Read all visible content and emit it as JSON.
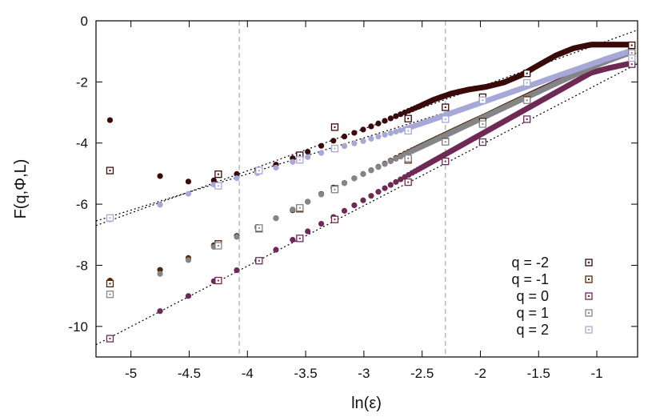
{
  "chart_data": {
    "type": "scatter",
    "xlabel": "ln(ε)",
    "ylabel": "F(q,Φ,L)",
    "xlim": [
      -5.3,
      -0.65
    ],
    "ylim": [
      -11,
      0
    ],
    "xticks": [
      -5,
      -4.5,
      -4,
      -3.5,
      -3,
      -2.5,
      -2,
      -1.5,
      -1
    ],
    "xtick_labels": [
      "-5",
      "-4.5",
      "-4",
      "-3.5",
      "-3",
      "-2.5",
      "-2",
      "-1.5",
      "-1"
    ],
    "yticks": [
      0,
      -2,
      -4,
      -6,
      -8,
      -10
    ],
    "ytick_labels": [
      "0",
      "-2",
      "-4",
      "-6",
      "-8",
      "-10"
    ],
    "grid": false,
    "legend_position": "bottom-right",
    "vertical_reference_lines": [
      -4.07,
      -2.3
    ],
    "fit_lines": [
      {
        "from": [
          -5.3,
          -6.7
        ],
        "to": [
          -0.65,
          -0.3
        ]
      },
      {
        "from": [
          -5.3,
          -6.55
        ],
        "to": [
          -0.65,
          -1.05
        ]
      },
      {
        "from": [
          -5.3,
          -10.6
        ],
        "to": [
          -0.65,
          -1.4
        ]
      }
    ],
    "dense_series": [
      {
        "color": "#3a0a0a",
        "points": [
          [
            -5.18,
            -3.25
          ],
          [
            -4.75,
            -5.08
          ],
          [
            -4.48,
            -5.28
          ],
          [
            -4.28,
            -5.22
          ],
          [
            -4.08,
            -5.0
          ],
          [
            -3.9,
            -4.87
          ],
          [
            -3.75,
            -4.7
          ],
          [
            -3.6,
            -4.48
          ],
          [
            -3.45,
            -4.23
          ],
          [
            -3.3,
            -3.98
          ],
          [
            -3.15,
            -3.76
          ],
          [
            -3.0,
            -3.55
          ],
          [
            -2.85,
            -3.32
          ],
          [
            -2.7,
            -3.08
          ],
          [
            -2.55,
            -2.84
          ],
          [
            -2.4,
            -2.58
          ],
          [
            -2.25,
            -2.38
          ],
          [
            -2.1,
            -2.25
          ],
          [
            -1.95,
            -2.16
          ],
          [
            -1.8,
            -2.02
          ],
          [
            -1.65,
            -1.78
          ],
          [
            -1.5,
            -1.45
          ],
          [
            -1.35,
            -1.13
          ],
          [
            -1.2,
            -0.9
          ],
          [
            -1.05,
            -0.78
          ],
          [
            -0.9,
            -0.78
          ],
          [
            -0.72,
            -0.78
          ]
        ]
      },
      {
        "color": "#4e2608",
        "points": [
          [
            -5.18,
            -8.5
          ],
          [
            -4.75,
            -8.15
          ],
          [
            -4.48,
            -7.72
          ],
          [
            -4.28,
            -7.33
          ],
          [
            -4.08,
            -7.02
          ],
          [
            -3.9,
            -6.72
          ],
          [
            -3.75,
            -6.45
          ],
          [
            -3.6,
            -6.18
          ],
          [
            -3.45,
            -5.85
          ],
          [
            -3.3,
            -5.52
          ],
          [
            -3.15,
            -5.28
          ],
          [
            -3.0,
            -5.0
          ],
          [
            -2.85,
            -4.73
          ],
          [
            -2.7,
            -4.44
          ],
          [
            -2.55,
            -4.17
          ],
          [
            -2.4,
            -3.9
          ],
          [
            -2.25,
            -3.63
          ],
          [
            -2.1,
            -3.36
          ],
          [
            -1.95,
            -3.1
          ],
          [
            -1.8,
            -2.82
          ],
          [
            -1.65,
            -2.55
          ],
          [
            -1.5,
            -2.28
          ],
          [
            -1.35,
            -2.02
          ],
          [
            -1.2,
            -1.76
          ],
          [
            -1.05,
            -1.5
          ],
          [
            -0.9,
            -1.25
          ],
          [
            -0.72,
            -1.0
          ]
        ]
      },
      {
        "color": "#6e2a54",
        "points": [
          [
            -5.18,
            -10.4
          ],
          [
            -4.75,
            -9.5
          ],
          [
            -4.48,
            -8.95
          ],
          [
            -4.28,
            -8.5
          ],
          [
            -4.08,
            -8.14
          ],
          [
            -3.9,
            -7.82
          ],
          [
            -3.75,
            -7.48
          ],
          [
            -3.6,
            -7.14
          ],
          [
            -3.45,
            -6.82
          ],
          [
            -3.3,
            -6.5
          ],
          [
            -3.15,
            -6.18
          ],
          [
            -3.0,
            -5.86
          ],
          [
            -2.85,
            -5.54
          ],
          [
            -2.7,
            -5.22
          ],
          [
            -2.55,
            -4.9
          ],
          [
            -2.4,
            -4.58
          ],
          [
            -2.25,
            -4.26
          ],
          [
            -2.1,
            -3.94
          ],
          [
            -1.95,
            -3.62
          ],
          [
            -1.8,
            -3.3
          ],
          [
            -1.65,
            -2.98
          ],
          [
            -1.5,
            -2.66
          ],
          [
            -1.35,
            -2.34
          ],
          [
            -1.2,
            -2.02
          ],
          [
            -1.05,
            -1.7
          ],
          [
            -0.9,
            -1.55
          ],
          [
            -0.72,
            -1.4
          ]
        ]
      },
      {
        "color": "#858589",
        "points": [
          [
            -5.18,
            -8.95
          ],
          [
            -4.75,
            -8.28
          ],
          [
            -4.48,
            -7.78
          ],
          [
            -4.28,
            -7.38
          ],
          [
            -4.08,
            -7.05
          ],
          [
            -3.9,
            -6.75
          ],
          [
            -3.75,
            -6.45
          ],
          [
            -3.6,
            -6.15
          ],
          [
            -3.45,
            -5.85
          ],
          [
            -3.3,
            -5.55
          ],
          [
            -3.15,
            -5.28
          ],
          [
            -3.0,
            -5.0
          ],
          [
            -2.85,
            -4.74
          ],
          [
            -2.7,
            -4.47
          ],
          [
            -2.55,
            -4.2
          ],
          [
            -2.4,
            -3.93
          ],
          [
            -2.25,
            -3.66
          ],
          [
            -2.1,
            -3.39
          ],
          [
            -1.95,
            -3.12
          ],
          [
            -1.8,
            -2.85
          ],
          [
            -1.65,
            -2.58
          ],
          [
            -1.5,
            -2.32
          ],
          [
            -1.35,
            -2.05
          ],
          [
            -1.2,
            -1.79
          ],
          [
            -1.05,
            -1.53
          ],
          [
            -0.9,
            -1.3
          ],
          [
            -0.72,
            -1.05
          ]
        ]
      },
      {
        "color": "#a8a8d8",
        "points": [
          [
            -5.18,
            -6.5
          ],
          [
            -4.75,
            -6.02
          ],
          [
            -4.48,
            -5.62
          ],
          [
            -4.28,
            -5.35
          ],
          [
            -4.08,
            -5.14
          ],
          [
            -3.9,
            -4.97
          ],
          [
            -3.75,
            -4.8
          ],
          [
            -3.6,
            -4.6
          ],
          [
            -3.45,
            -4.42
          ],
          [
            -3.3,
            -4.25
          ],
          [
            -3.15,
            -4.08
          ],
          [
            -3.0,
            -3.93
          ],
          [
            -2.85,
            -3.76
          ],
          [
            -2.7,
            -3.6
          ],
          [
            -2.55,
            -3.42
          ],
          [
            -2.4,
            -3.22
          ],
          [
            -2.25,
            -3.02
          ],
          [
            -2.1,
            -2.82
          ],
          [
            -1.95,
            -2.62
          ],
          [
            -1.8,
            -2.42
          ],
          [
            -1.65,
            -2.22
          ],
          [
            -1.5,
            -2.02
          ],
          [
            -1.35,
            -1.82
          ],
          [
            -1.2,
            -1.62
          ],
          [
            -1.05,
            -1.42
          ],
          [
            -0.9,
            -1.22
          ],
          [
            -0.72,
            -1.0
          ]
        ]
      }
    ],
    "series": [
      {
        "name": "q = -2",
        "color": "#3a0a0a",
        "points": [
          [
            -5.18,
            -4.9
          ],
          [
            -4.25,
            -5.02
          ],
          [
            -3.55,
            -4.4
          ],
          [
            -3.25,
            -3.48
          ],
          [
            -2.62,
            -3.2
          ],
          [
            -2.3,
            -2.83
          ],
          [
            -1.98,
            -2.5
          ],
          [
            -1.6,
            -1.72
          ],
          [
            -0.7,
            -0.8
          ]
        ]
      },
      {
        "name": "q = -1",
        "color": "#4e2608",
        "points": [
          [
            -5.18,
            -8.6
          ],
          [
            -4.25,
            -7.3
          ],
          [
            -3.9,
            -6.8
          ],
          [
            -3.55,
            -6.15
          ],
          [
            -3.25,
            -5.5
          ],
          [
            -2.62,
            -4.55
          ],
          [
            -2.3,
            -3.95
          ],
          [
            -1.98,
            -3.3
          ],
          [
            -1.6,
            -2.58
          ],
          [
            -0.7,
            -1.05
          ]
        ]
      },
      {
        "name": "q = 0",
        "color": "#6e2a54",
        "points": [
          [
            -5.18,
            -10.4
          ],
          [
            -4.25,
            -8.5
          ],
          [
            -3.9,
            -7.85
          ],
          [
            -3.55,
            -7.12
          ],
          [
            -3.25,
            -6.5
          ],
          [
            -2.62,
            -5.28
          ],
          [
            -2.3,
            -4.6
          ],
          [
            -1.98,
            -3.97
          ],
          [
            -1.6,
            -3.22
          ],
          [
            -0.7,
            -1.42
          ]
        ]
      },
      {
        "name": "q = 1",
        "color": "#858589",
        "points": [
          [
            -5.18,
            -8.95
          ],
          [
            -4.25,
            -7.36
          ],
          [
            -3.9,
            -6.78
          ],
          [
            -3.55,
            -6.12
          ],
          [
            -3.25,
            -5.52
          ],
          [
            -2.62,
            -4.5
          ],
          [
            -2.3,
            -3.96
          ],
          [
            -1.98,
            -3.38
          ],
          [
            -1.6,
            -2.6
          ],
          [
            -0.7,
            -1.05
          ]
        ]
      },
      {
        "name": "q = 2",
        "color": "#a8a8d8",
        "points": [
          [
            -5.18,
            -6.45
          ],
          [
            -4.25,
            -5.4
          ],
          [
            -3.9,
            -4.9
          ],
          [
            -3.55,
            -4.55
          ],
          [
            -3.25,
            -4.18
          ],
          [
            -2.62,
            -3.6
          ],
          [
            -2.3,
            -3.22
          ],
          [
            -1.98,
            -2.6
          ],
          [
            -1.6,
            -2.03
          ],
          [
            -0.7,
            -1.22
          ]
        ]
      }
    ]
  }
}
